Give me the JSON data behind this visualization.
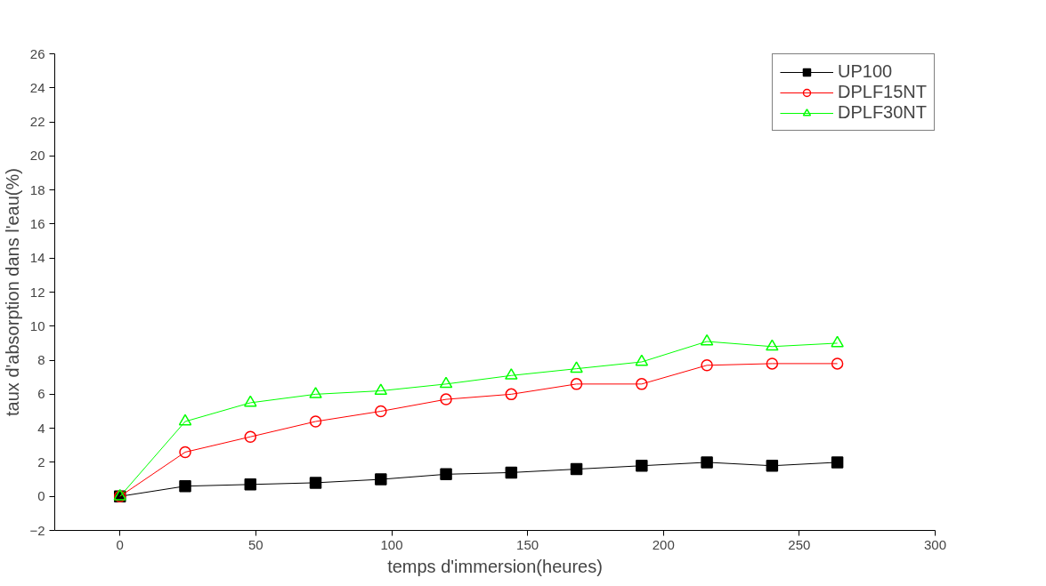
{
  "chart_data": {
    "type": "line",
    "xlabel": "temps d'immersion(heures)",
    "ylabel": "taux d'absorption dans l'eau(%)",
    "x": [
      0,
      24,
      48,
      72,
      96,
      120,
      144,
      168,
      192,
      216,
      240,
      264
    ],
    "series": [
      {
        "name": "UP100",
        "color": "#000000",
        "marker": "square",
        "values": [
          0,
          0.6,
          0.7,
          0.8,
          1.0,
          1.3,
          1.4,
          1.6,
          1.8,
          2.0,
          1.8,
          2.0
        ]
      },
      {
        "name": "DPLF15NT",
        "color": "#ff0000",
        "marker": "circle",
        "values": [
          0,
          2.6,
          3.5,
          4.4,
          5.0,
          5.7,
          6.0,
          6.6,
          6.6,
          7.7,
          7.8,
          7.8
        ]
      },
      {
        "name": "DPLF30NT",
        "color": "#00ff00",
        "marker": "triangle",
        "values": [
          0,
          4.4,
          5.5,
          6.0,
          6.2,
          6.6,
          7.1,
          7.5,
          7.9,
          9.1,
          8.8,
          9.0
        ]
      }
    ],
    "xlim": [
      -24,
      300
    ],
    "ylim": [
      -2,
      26
    ],
    "xticks": [
      0,
      50,
      100,
      150,
      200,
      250,
      300
    ],
    "yticks": [
      -2,
      0,
      2,
      4,
      6,
      8,
      10,
      12,
      14,
      16,
      18,
      20,
      22,
      24,
      26
    ],
    "grid": false,
    "legend": "top right"
  }
}
